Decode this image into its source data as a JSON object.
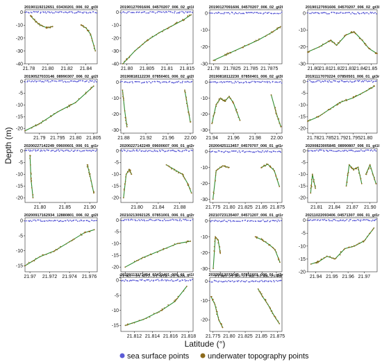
{
  "figure": {
    "ylabel": "Depth (m)",
    "xlabel": "Latitude (°)",
    "legend": [
      {
        "label": "sea surface points",
        "color": "#5b5bd6"
      },
      {
        "label": "underwater topography points",
        "color": "#8c6a1c"
      }
    ],
    "colors": {
      "surface": "#5b5bd6",
      "bottom": "#8c6a1c",
      "fit": "#2e8b2e",
      "noise": "#f4b8c8"
    }
  },
  "chart_data": [
    {
      "type": "scatter",
      "title": "20190119212651_03430201_006_02_gt3l",
      "xticks": [
        21.78,
        21.8,
        21.82,
        21.84
      ],
      "xlim": [
        21.776,
        21.852
      ],
      "yticks": [
        0,
        -10,
        -20,
        -30,
        -40
      ],
      "ylim": [
        -40,
        2
      ],
      "segments": [
        [
          [
            21.782,
            -3
          ],
          [
            21.786,
            -6
          ],
          [
            21.79,
            -9
          ],
          [
            21.795,
            -11
          ],
          [
            21.8,
            -12
          ],
          [
            21.805,
            -11
          ]
        ],
        [
          [
            21.835,
            -10
          ],
          [
            21.84,
            -12
          ],
          [
            21.845,
            -17
          ],
          [
            21.85,
            -30
          ]
        ]
      ]
    },
    {
      "type": "scatter",
      "title": "20190127091606_04570207_006_02_gt1l",
      "xticks": [
        21.8,
        21.805,
        21.81,
        21.815
      ],
      "xlim": [
        21.7985,
        21.8165
      ],
      "yticks": [
        0,
        -10,
        -20,
        -30,
        -40
      ],
      "ylim": [
        -40,
        2
      ],
      "segments": [
        [
          [
            21.799,
            -40
          ],
          [
            21.802,
            -30
          ],
          [
            21.805,
            -22
          ],
          [
            21.808,
            -16
          ],
          [
            21.811,
            -11
          ],
          [
            21.814,
            -6
          ],
          [
            21.816,
            -2
          ]
        ]
      ]
    },
    {
      "type": "scatter",
      "title": "20190127091606_04570207_006_02_gt2l",
      "xticks": [
        21.78,
        21.7825,
        21.785,
        21.7875
      ],
      "xlim": [
        21.7795,
        21.7892
      ],
      "yticks": [
        0,
        -10,
        -20,
        -30
      ],
      "ylim": [
        -30,
        2
      ],
      "segments": [
        [
          [
            21.78,
            -28
          ],
          [
            21.782,
            -24
          ],
          [
            21.784,
            -20
          ],
          [
            21.786,
            -16
          ],
          [
            21.788,
            -11
          ],
          [
            21.789,
            -8
          ]
        ]
      ]
    },
    {
      "type": "scatter",
      "title": "20190127091606_04570207_006_02_gt3l",
      "xticks": [
        21.8,
        21.81,
        21.82,
        21.83,
        21.84,
        21.85
      ],
      "xlim": [
        21.795,
        21.855
      ],
      "yticks": [
        0,
        -10,
        -20,
        -30
      ],
      "ylim": [
        -30,
        2
      ],
      "segments": [
        [
          [
            21.795,
            -23
          ],
          [
            21.805,
            -20
          ],
          [
            21.815,
            -16
          ],
          [
            21.82,
            -19
          ],
          [
            21.828,
            -13
          ],
          [
            21.835,
            -11
          ],
          [
            21.842,
            -16
          ],
          [
            21.848,
            -21
          ],
          [
            21.855,
            -24
          ]
        ]
      ]
    },
    {
      "type": "scatter",
      "title": "20190527033146_08990307_006_02_gt2l",
      "xticks": [
        21.79,
        21.795,
        21.8,
        21.805
      ],
      "xlim": [
        21.786,
        21.806
      ],
      "yticks": [
        0,
        -5,
        -10,
        -15,
        -20
      ],
      "ylim": [
        -22,
        1
      ],
      "segments": [
        [
          [
            21.786,
            -21
          ],
          [
            21.79,
            -18
          ],
          [
            21.795,
            -13
          ],
          [
            21.8,
            -9
          ],
          [
            21.805,
            -2
          ]
        ]
      ]
    },
    {
      "type": "scatter",
      "title": "20190818112230_07850401_006_02_gt2l",
      "xticks": [
        21.88,
        21.92,
        21.96,
        22.0
      ],
      "xlim": [
        21.875,
        22.005
      ],
      "yticks": [
        0,
        -10,
        -20,
        -30
      ],
      "ylim": [
        -32,
        2
      ],
      "segments": [
        [
          [
            21.878,
            -5
          ],
          [
            21.882,
            -18
          ],
          [
            21.886,
            -28
          ]
        ],
        [
          [
            21.99,
            -5
          ],
          [
            21.995,
            -15
          ],
          [
            22.0,
            -25
          ]
        ]
      ]
    },
    {
      "type": "scatter",
      "title": "20190818112230_07850401_006_02_gt3l",
      "xticks": [
        21.94,
        21.96,
        21.98,
        22.0
      ],
      "xlim": [
        21.938,
        22.005
      ],
      "yticks": [
        0,
        -10,
        -20,
        -30
      ],
      "ylim": [
        -32,
        2
      ],
      "segments": [
        [
          [
            21.94,
            -26
          ],
          [
            21.944,
            -14
          ],
          [
            21.948,
            -10
          ],
          [
            21.952,
            -12
          ],
          [
            21.956,
            -9
          ],
          [
            21.96,
            -13
          ],
          [
            21.966,
            -24
          ]
        ],
        [
          [
            21.995,
            -8
          ],
          [
            22.0,
            -20
          ],
          [
            22.004,
            -28
          ]
        ]
      ]
    },
    {
      "type": "scatter",
      "title": "20191117070224_07850501_006_01_gt3r",
      "xticks": [
        21.78,
        21.785,
        21.79,
        21.795,
        21.8
      ],
      "xlim": [
        21.778,
        21.804
      ],
      "yticks": [
        0,
        -5,
        -10,
        -15,
        -20
      ],
      "ylim": [
        -22,
        1
      ],
      "segments": [
        [
          [
            21.778,
            -17
          ],
          [
            21.782,
            -15
          ],
          [
            21.786,
            -12
          ],
          [
            21.79,
            -9
          ],
          [
            21.795,
            -7
          ],
          [
            21.8,
            -4
          ],
          [
            21.803,
            -2
          ]
        ]
      ]
    },
    {
      "type": "scatter",
      "title": "20200227142249_09600601_006_01_gt1r",
      "xticks": [
        21.8,
        21.85,
        21.9
      ],
      "xlim": [
        21.77,
        21.915
      ],
      "yticks": [
        0,
        -5,
        -10,
        -15,
        -20
      ],
      "ylim": [
        -22,
        1
      ],
      "segments": [
        [
          [
            21.78,
            -2
          ],
          [
            21.782,
            -12
          ],
          [
            21.786,
            -20
          ]
        ],
        [
          [
            21.895,
            -6
          ],
          [
            21.9,
            -10
          ],
          [
            21.908,
            -18
          ]
        ]
      ]
    },
    {
      "type": "scatter",
      "title": "20200227142249_09600607_006_01_gt2r",
      "xticks": [
        21.8,
        21.84,
        21.88
      ],
      "xlim": [
        21.77,
        21.905
      ],
      "yticks": [
        0,
        -5,
        -10,
        -15,
        -20
      ],
      "ylim": [
        -22,
        1
      ],
      "segments": [
        [
          [
            21.775,
            -20
          ],
          [
            21.78,
            -10
          ],
          [
            21.786,
            -8
          ],
          [
            21.79,
            -10
          ]
        ],
        [
          [
            21.855,
            -6
          ],
          [
            21.87,
            -8
          ],
          [
            21.885,
            -10
          ],
          [
            21.895,
            -14
          ],
          [
            21.902,
            -18
          ]
        ]
      ]
    },
    {
      "type": "scatter",
      "title": "20200425113457_04570707_006_01_gt1r",
      "xticks": [
        21.775,
        21.8,
        21.825,
        21.85,
        21.875
      ],
      "xlim": [
        21.77,
        21.882
      ],
      "yticks": [
        0,
        -10,
        -20,
        -30
      ],
      "ylim": [
        -32,
        2
      ],
      "segments": [
        [
          [
            21.775,
            -30
          ],
          [
            21.78,
            -12
          ],
          [
            21.79,
            -9
          ],
          [
            21.8,
            -10
          ]
        ],
        [
          [
            21.85,
            -10
          ],
          [
            21.86,
            -8
          ],
          [
            21.87,
            -12
          ],
          [
            21.878,
            -22
          ]
        ]
      ]
    },
    {
      "type": "scatter",
      "title": "20200823005845_08990807_006_01_gt1l",
      "xticks": [
        21.81,
        21.84,
        21.87,
        21.9
      ],
      "xlim": [
        21.795,
        21.912
      ],
      "yticks": [
        0,
        -5,
        -10,
        -15,
        -20
      ],
      "ylim": [
        -22,
        1
      ],
      "segments": [
        [
          [
            21.8,
            -18
          ],
          [
            21.803,
            -10
          ],
          [
            21.808,
            -16
          ]
        ],
        [
          [
            21.86,
            -15
          ],
          [
            21.865,
            -6
          ],
          [
            21.872,
            -8
          ],
          [
            21.88,
            -7
          ],
          [
            21.886,
            -14
          ]
        ],
        [
          [
            21.893,
            -10
          ],
          [
            21.9,
            -6
          ],
          [
            21.91,
            -14
          ]
        ]
      ]
    },
    {
      "type": "scatter",
      "title": "20200917162934_12880801_006_02_gt2l",
      "xticks": [
        21.97,
        21.972,
        21.974,
        21.976
      ],
      "xlim": [
        21.9695,
        21.9768
      ],
      "yticks": [
        0,
        -5,
        -10,
        -15
      ],
      "ylim": [
        -17,
        1
      ],
      "segments": [
        [
          [
            21.9695,
            -15
          ],
          [
            21.971,
            -12
          ],
          [
            21.9725,
            -10
          ],
          [
            21.974,
            -7
          ],
          [
            21.9755,
            -4
          ],
          [
            21.9765,
            -3
          ]
        ]
      ]
    },
    {
      "type": "scatter",
      "title": "20210213092125_07851001_006_01_gt2r",
      "xticks": [
        21.97,
        21.972,
        21.974,
        21.976
      ],
      "xlim": [
        21.9695,
        21.9778
      ],
      "yticks": [
        0,
        -5,
        -10,
        -15,
        -20
      ],
      "ylim": [
        -22,
        1
      ],
      "segments": [
        [
          [
            21.97,
            -20
          ],
          [
            21.972,
            -16
          ],
          [
            21.974,
            -13
          ],
          [
            21.976,
            -10
          ],
          [
            21.9775,
            -9
          ]
        ]
      ]
    },
    {
      "type": "scatter",
      "title": "20210723135407_04571207_006_01_gt1r",
      "xticks": [
        21.8,
        21.82,
        21.84,
        21.86,
        21.88
      ],
      "xlim": [
        21.785,
        21.888
      ],
      "yticks": [
        0,
        -10,
        -20,
        -30
      ],
      "ylim": [
        -32,
        2
      ],
      "segments": [
        [
          [
            21.79,
            -30
          ],
          [
            21.793,
            -10
          ],
          [
            21.797,
            -12
          ],
          [
            21.8,
            -20
          ]
        ],
        [
          [
            21.85,
            -10
          ],
          [
            21.86,
            -12
          ],
          [
            21.87,
            -15
          ],
          [
            21.878,
            -18
          ],
          [
            21.885,
            -26
          ]
        ]
      ]
    },
    {
      "type": "scatter",
      "title": "20211022093406_04571307_006_01_gt1r",
      "xticks": [
        21.94,
        21.95,
        21.96,
        21.97
      ],
      "xlim": [
        21.935,
        21.978
      ],
      "yticks": [
        0,
        -5,
        -10,
        -15,
        -20
      ],
      "ylim": [
        -20,
        1
      ],
      "segments": [
        [
          [
            21.937,
            -17
          ],
          [
            21.942,
            -16
          ],
          [
            21.947,
            -14
          ],
          [
            21.952,
            -15
          ],
          [
            21.958,
            -11
          ],
          [
            21.964,
            -10
          ],
          [
            21.97,
            -8
          ],
          [
            21.976,
            -3
          ]
        ]
      ]
    },
    {
      "type": "scatter",
      "title": "20220113172454_03431401_006_01_gt1l",
      "xticks": [
        21.812,
        21.814,
        21.816,
        21.818
      ],
      "xlim": [
        21.8105,
        21.8185
      ],
      "yticks": [
        0,
        -5,
        -10,
        -15
      ],
      "ylim": [
        -17,
        1
      ],
      "segments": [
        [
          [
            21.811,
            -15
          ],
          [
            21.813,
            -13
          ],
          [
            21.815,
            -10
          ],
          [
            21.8165,
            -7
          ],
          [
            21.8178,
            -2
          ]
        ]
      ]
    },
    {
      "type": "scatter",
      "title": "20220812072045_07851601_006_01_gt3r",
      "xticks": [
        21.775,
        21.8,
        21.825,
        21.85,
        21.875
      ],
      "xlim": [
        21.77,
        21.882
      ],
      "yticks": [
        0,
        -10,
        -20
      ],
      "ylim": [
        -26,
        2
      ],
      "segments": [
        [
          [
            21.772,
            -8
          ],
          [
            21.778,
            -12
          ],
          [
            21.784,
            -20
          ],
          [
            21.79,
            -24
          ]
        ],
        [
          [
            21.845,
            -4
          ],
          [
            21.852,
            -8
          ],
          [
            21.86,
            -12
          ],
          [
            21.87,
            -18
          ],
          [
            21.878,
            -22
          ]
        ]
      ]
    }
  ]
}
